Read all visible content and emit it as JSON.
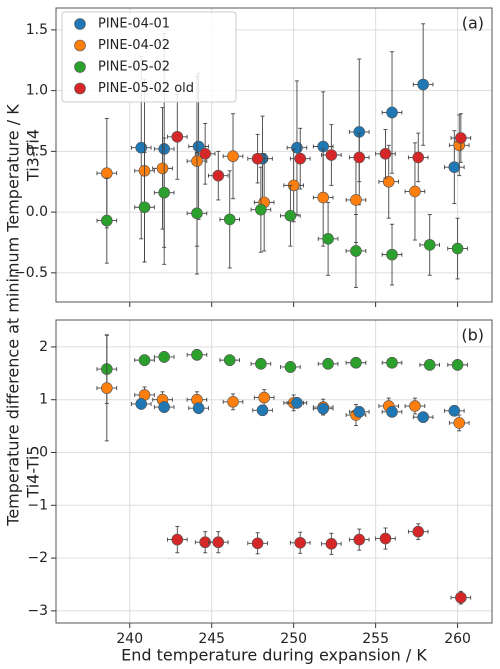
{
  "ylabel": "Temperature difference at minimum Temperature / K",
  "chart_data": [
    {
      "type": "scatter",
      "panel_label": "(a)",
      "ylabel": "Ti3-Ti4",
      "legend": "upper left",
      "grid": true,
      "xlim": [
        235.5,
        262.1
      ],
      "ylim": [
        -0.74,
        1.68
      ],
      "xticks": [
        240,
        245,
        250,
        255,
        260
      ],
      "show_xticklabels": false,
      "yticks": [
        {
          "value": -0.5,
          "label": "−0.5"
        },
        {
          "value": 0,
          "label": "0.0"
        },
        {
          "value": 0.5,
          "label": "0.5"
        },
        {
          "value": 1,
          "label": "1.0"
        },
        {
          "value": 1.5,
          "label": "1.5"
        }
      ],
      "series": [
        {
          "name": "PINE-04-01",
          "color": "#1f77b4",
          "xerr": 0.6,
          "x": [
            240.7,
            242.1,
            244.2,
            248.1,
            250.2,
            251.8,
            254.0,
            256.0,
            257.9,
            259.8
          ],
          "values": [
            0.53,
            0.52,
            0.54,
            0.44,
            0.53,
            0.54,
            0.66,
            0.82,
            1.05,
            0.37
          ],
          "yerr": [
            0.75,
            0.95,
            0.6,
            0.35,
            0.55,
            0.45,
            0.6,
            0.5,
            0.5,
            0.3
          ]
        },
        {
          "name": "PINE-04-02",
          "color": "#ff7f0e",
          "xerr": 0.6,
          "x": [
            238.6,
            240.9,
            242.0,
            244.1,
            246.3,
            248.2,
            250.0,
            251.8,
            253.8,
            255.8,
            257.4,
            260.1
          ],
          "values": [
            0.32,
            0.34,
            0.36,
            0.42,
            0.46,
            0.08,
            0.22,
            0.12,
            0.1,
            0.25,
            0.17,
            0.55
          ],
          "yerr": [
            0.45,
            0.75,
            0.5,
            0.7,
            0.35,
            0.4,
            0.3,
            0.4,
            0.35,
            0.3,
            0.4,
            0.25
          ]
        },
        {
          "name": "PINE-05-02",
          "color": "#2ca02c",
          "xerr": 0.6,
          "x": [
            238.6,
            240.9,
            242.1,
            244.1,
            246.1,
            248.0,
            249.8,
            252.1,
            253.8,
            256.0,
            258.3,
            260.0
          ],
          "values": [
            -0.07,
            0.04,
            0.16,
            -0.01,
            -0.06,
            0.02,
            -0.03,
            -0.22,
            -0.32,
            -0.35,
            -0.27,
            -0.3
          ],
          "yerr": [
            0.35,
            0.45,
            0.45,
            0.5,
            0.4,
            0.35,
            0.25,
            0.3,
            0.3,
            0.25,
            0.25,
            0.25
          ]
        },
        {
          "name": "PINE-05-02 old",
          "color": "#d62728",
          "xerr": 0.6,
          "x": [
            242.9,
            244.6,
            245.4,
            247.8,
            250.4,
            252.3,
            254.0,
            255.6,
            257.6,
            260.2
          ],
          "values": [
            0.62,
            0.48,
            0.3,
            0.44,
            0.44,
            0.47,
            0.45,
            0.48,
            0.45,
            0.61
          ],
          "yerr": [
            0.35,
            0.25,
            0.2,
            0.2,
            0.25,
            0.25,
            0.2,
            0.2,
            0.2,
            0.2
          ]
        }
      ]
    },
    {
      "type": "scatter",
      "panel_label": "(b)",
      "ylabel": "Ti4-Ti5",
      "xlabel": "End temperature during expansion / K",
      "grid": true,
      "xlim": [
        235.5,
        262.1
      ],
      "ylim": [
        -3.23,
        2.51
      ],
      "xticks": [
        240,
        245,
        250,
        255,
        260
      ],
      "show_xticklabels": true,
      "yticks": [
        {
          "value": -3,
          "label": "−3"
        },
        {
          "value": -2,
          "label": "−2"
        },
        {
          "value": -1,
          "label": "−1"
        },
        0,
        1,
        2
      ],
      "series": [
        {
          "color": "#2ca02c",
          "xerr": 0.6,
          "x": [
            238.6,
            240.9,
            242.1,
            244.1,
            246.1,
            248.0,
            249.8,
            252.1,
            253.8,
            256.0,
            258.3,
            260.0
          ],
          "values": [
            1.58,
            1.75,
            1.81,
            1.85,
            1.75,
            1.68,
            1.62,
            1.68,
            1.7,
            1.7,
            1.66,
            1.66
          ],
          "yerr": [
            0.65,
            0.1,
            0.1,
            0.1,
            0.1,
            0.1,
            0.1,
            0.1,
            0.1,
            0.1,
            0.1,
            0.1
          ]
        },
        {
          "color": "#ff7f0e",
          "xerr": 0.6,
          "x": [
            238.6,
            240.9,
            242.0,
            244.1,
            246.3,
            248.2,
            250.0,
            251.8,
            253.8,
            255.8,
            257.4,
            260.1
          ],
          "values": [
            1.22,
            1.09,
            1.0,
            1.0,
            0.96,
            1.04,
            0.94,
            0.86,
            0.71,
            0.88,
            0.88,
            0.56
          ],
          "yerr": [
            1.0,
            0.15,
            0.15,
            0.15,
            0.15,
            0.15,
            0.15,
            0.15,
            0.2,
            0.15,
            0.15,
            0.15
          ]
        },
        {
          "color": "#1f77b4",
          "xerr": 0.6,
          "x": [
            240.7,
            242.1,
            244.2,
            248.1,
            250.2,
            251.8,
            254.0,
            256.0,
            257.9,
            259.8
          ],
          "values": [
            0.92,
            0.86,
            0.84,
            0.8,
            0.94,
            0.83,
            0.77,
            0.77,
            0.67,
            0.79
          ],
          "yerr": [
            0.1,
            0.1,
            0.1,
            0.1,
            0.1,
            0.1,
            0.1,
            0.1,
            0.1,
            0.1
          ]
        },
        {
          "color": "#d62728",
          "xerr": 0.6,
          "x": [
            242.9,
            244.6,
            245.4,
            247.8,
            250.4,
            252.3,
            254.0,
            255.6,
            257.6,
            260.2
          ],
          "values": [
            -1.65,
            -1.7,
            -1.7,
            -1.72,
            -1.71,
            -1.73,
            -1.65,
            -1.63,
            -1.5,
            -2.75
          ],
          "yerr": [
            0.25,
            0.2,
            0.2,
            0.2,
            0.2,
            0.2,
            0.2,
            0.2,
            0.15,
            0.12
          ]
        }
      ]
    }
  ]
}
